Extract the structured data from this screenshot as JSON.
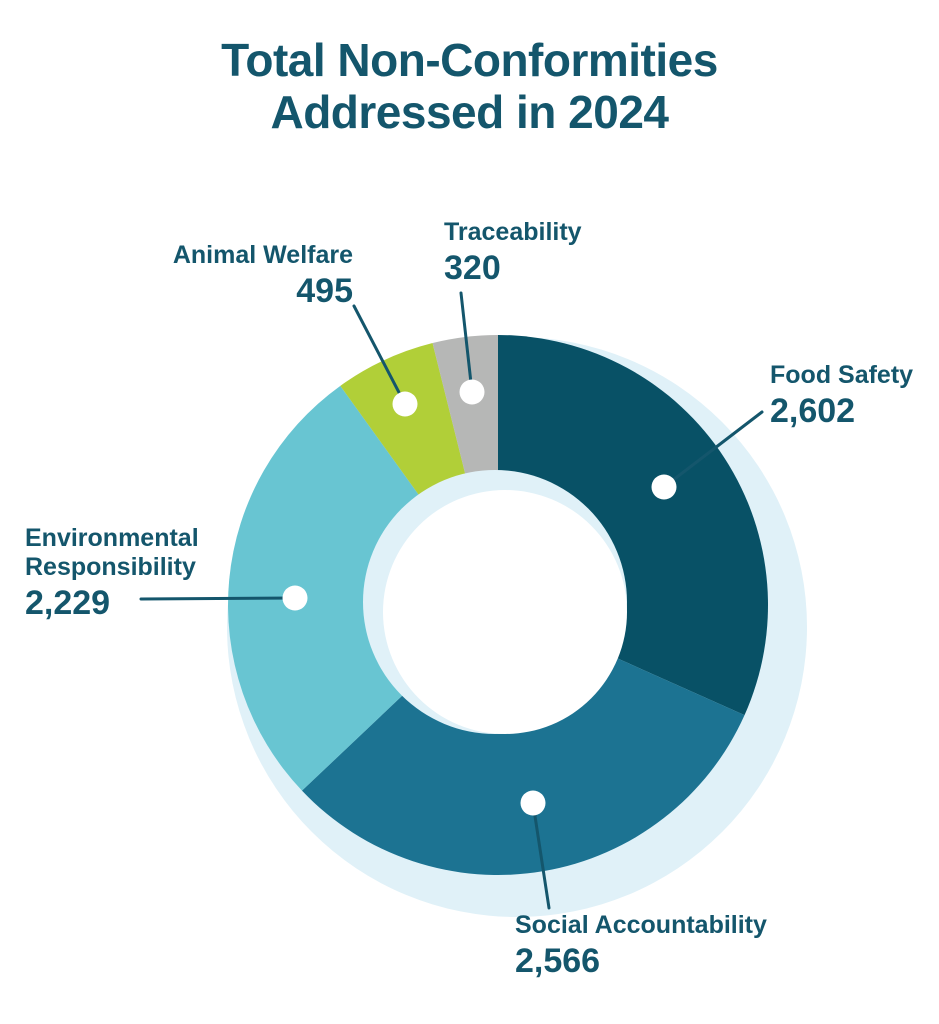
{
  "title": {
    "line1": "Total Non-Conformities",
    "line2": "Addressed in 2024"
  },
  "chart_data": {
    "type": "pie",
    "variant": "donut",
    "title": "Total Non-Conformities Addressed in 2024",
    "categories": [
      "Food Safety",
      "Social Accountability",
      "Environmental Responsibility",
      "Animal Welfare",
      "Traceability"
    ],
    "values": [
      2602,
      2566,
      2229,
      495,
      320
    ],
    "colors": [
      "#085166",
      "#1c7392",
      "#68c5d2",
      "#b1cf38",
      "#b6b7b6"
    ],
    "start_angle_deg": 0,
    "direction": "clockwise",
    "legend_position": "callout-labels",
    "labels": [
      {
        "name": "Food Safety",
        "value": 2602,
        "value_formatted": "2,602"
      },
      {
        "name": "Social Accountability",
        "value": 2566,
        "value_formatted": "2,566"
      },
      {
        "name": "Environmental Responsibility",
        "value": 2229,
        "value_formatted": "2,229"
      },
      {
        "name": "Animal Welfare",
        "value": 495,
        "value_formatted": "495"
      },
      {
        "name": "Traceability",
        "value": 320,
        "value_formatted": "320"
      }
    ]
  },
  "colors": {
    "ink": "#14566c",
    "shadow": "#e0f1f8",
    "dot": "#ffffff",
    "leader": "#14566c",
    "background": "#ffffff"
  }
}
